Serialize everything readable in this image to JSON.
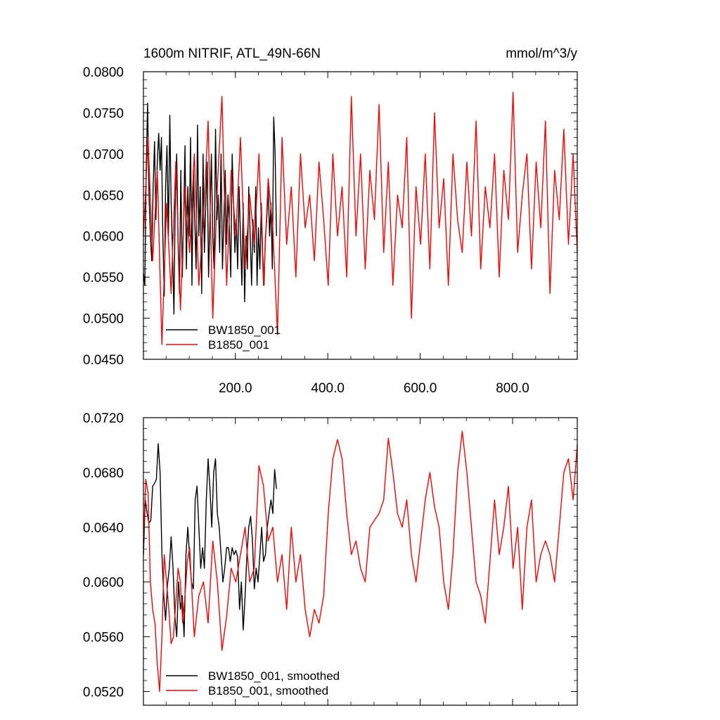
{
  "figure": {
    "title_left": "1600m NITRIF, ATL_49N-66N",
    "title_right": "mmol/m^3/y"
  },
  "chart_data": [
    {
      "type": "line",
      "title": "1600m NITRIF, ATL_49N-66N",
      "units": "mmol/m^3/y",
      "xlim": [
        1,
        940
      ],
      "ylim": [
        0.045,
        0.08
      ],
      "x_ticks": [
        200,
        400,
        600,
        800
      ],
      "x_tick_labels": [
        "200.0",
        "400.0",
        "600.0",
        "800.0"
      ],
      "y_ticks": [
        0.045,
        0.05,
        0.055,
        0.06,
        0.065,
        0.07,
        0.075,
        0.08
      ],
      "y_tick_labels": [
        "0.0450",
        "0.0500",
        "0.0550",
        "0.0600",
        "0.0650",
        "0.0700",
        "0.0750",
        "0.0800"
      ],
      "grid": false,
      "legend_position": "bottom-left",
      "series": [
        {
          "name": "BW1850_001",
          "color": "#000000",
          "x": [
            1,
            4,
            7,
            10,
            13,
            16,
            19,
            22,
            25,
            28,
            31,
            34,
            37,
            40,
            43,
            46,
            49,
            52,
            55,
            58,
            61,
            64,
            67,
            70,
            73,
            76,
            79,
            82,
            85,
            88,
            91,
            94,
            97,
            100,
            103,
            106,
            109,
            112,
            115,
            118,
            121,
            124,
            127,
            130,
            133,
            136,
            139,
            142,
            145,
            148,
            151,
            154,
            157,
            160,
            163,
            166,
            169,
            172,
            175,
            178,
            181,
            184,
            187,
            190,
            193,
            196,
            199,
            202,
            205,
            208,
            211,
            214,
            217,
            220,
            223,
            226,
            229,
            232,
            235,
            238,
            241,
            244,
            247,
            250,
            253,
            256,
            259,
            262,
            265,
            268,
            271,
            274,
            277,
            280,
            283,
            286,
            289
          ],
          "values": [
            0.0555,
            0.054,
            0.068,
            0.0762,
            0.065,
            0.06,
            0.057,
            0.066,
            0.0715,
            0.062,
            0.069,
            0.0725,
            0.068,
            0.072,
            0.06,
            0.0527,
            0.066,
            0.071,
            0.06,
            0.0747,
            0.064,
            0.058,
            0.0505,
            0.065,
            0.07,
            0.059,
            0.053,
            0.068,
            0.055,
            0.062,
            0.071,
            0.056,
            0.066,
            0.06,
            0.072,
            0.054,
            0.068,
            0.062,
            0.056,
            0.0735,
            0.06,
            0.066,
            0.053,
            0.07,
            0.058,
            0.064,
            0.069,
            0.055,
            0.062,
            0.07,
            0.06,
            0.056,
            0.073,
            0.062,
            0.065,
            0.058,
            0.07,
            0.056,
            0.062,
            0.068,
            0.059,
            0.065,
            0.061,
            0.055,
            0.07,
            0.064,
            0.058,
            0.062,
            0.056,
            0.066,
            0.06,
            0.054,
            0.064,
            0.052,
            0.06,
            0.056,
            0.066,
            0.06,
            0.054,
            0.062,
            0.058,
            0.066,
            0.054,
            0.061,
            0.056,
            0.064,
            0.058,
            0.054,
            0.06,
            0.062,
            0.066,
            0.06,
            0.064,
            0.056,
            0.0745,
            0.07,
            0.06
          ]
        },
        {
          "name": "B1850_001",
          "color": "#ff0000",
          "x": [
            1,
            11,
            21,
            31,
            41,
            51,
            61,
            71,
            81,
            91,
            101,
            111,
            121,
            131,
            141,
            151,
            161,
            171,
            181,
            191,
            201,
            211,
            221,
            231,
            241,
            251,
            261,
            271,
            281,
            291,
            301,
            311,
            321,
            331,
            341,
            351,
            361,
            371,
            381,
            391,
            401,
            411,
            421,
            431,
            441,
            451,
            461,
            471,
            481,
            491,
            501,
            511,
            521,
            531,
            541,
            551,
            561,
            571,
            581,
            591,
            601,
            611,
            621,
            631,
            641,
            651,
            661,
            671,
            681,
            691,
            701,
            711,
            721,
            731,
            741,
            751,
            761,
            771,
            781,
            791,
            801,
            811,
            821,
            831,
            841,
            851,
            861,
            871,
            881,
            891,
            901,
            911,
            921,
            931,
            940
          ],
          "values": [
            0.06,
            0.072,
            0.057,
            0.068,
            0.0468,
            0.064,
            0.053,
            0.069,
            0.051,
            0.066,
            0.058,
            0.07,
            0.054,
            0.062,
            0.074,
            0.05,
            0.066,
            0.077,
            0.054,
            0.068,
            0.06,
            0.072,
            0.056,
            0.065,
            0.059,
            0.07,
            0.054,
            0.067,
            0.061,
            0.048,
            0.072,
            0.059,
            0.066,
            0.055,
            0.07,
            0.061,
            0.065,
            0.057,
            0.069,
            0.062,
            0.054,
            0.07,
            0.06,
            0.066,
            0.055,
            0.077,
            0.06,
            0.07,
            0.056,
            0.068,
            0.062,
            0.076,
            0.058,
            0.069,
            0.054,
            0.065,
            0.061,
            0.072,
            0.05,
            0.066,
            0.059,
            0.07,
            0.056,
            0.075,
            0.061,
            0.067,
            0.054,
            0.07,
            0.062,
            0.058,
            0.069,
            0.06,
            0.074,
            0.056,
            0.066,
            0.061,
            0.07,
            0.055,
            0.068,
            0.062,
            0.0775,
            0.058,
            0.065,
            0.07,
            0.056,
            0.069,
            0.061,
            0.074,
            0.053,
            0.068,
            0.062,
            0.073,
            0.059,
            0.07,
            0.058
          ]
        }
      ]
    },
    {
      "type": "line",
      "xlim": [
        1,
        940
      ],
      "ylim": [
        0.051,
        0.072
      ],
      "x_ticks": [
        200,
        400,
        600,
        800
      ],
      "x_tick_labels": [],
      "y_ticks": [
        0.052,
        0.056,
        0.06,
        0.064,
        0.068,
        0.072
      ],
      "y_tick_labels": [
        "0.0520",
        "0.0560",
        "0.0600",
        "0.0640",
        "0.0680",
        "0.0720"
      ],
      "grid": false,
      "legend_position": "bottom-left",
      "series": [
        {
          "name": "BW1850_001, smoothed",
          "color": "#000000",
          "x": [
            1,
            5,
            9,
            13,
            17,
            21,
            25,
            29,
            33,
            37,
            41,
            45,
            49,
            53,
            57,
            61,
            65,
            69,
            73,
            77,
            81,
            85,
            89,
            93,
            97,
            101,
            105,
            109,
            113,
            117,
            121,
            125,
            129,
            133,
            137,
            141,
            145,
            149,
            153,
            157,
            161,
            165,
            169,
            173,
            177,
            181,
            185,
            189,
            193,
            197,
            201,
            205,
            209,
            213,
            217,
            221,
            225,
            229,
            233,
            237,
            241,
            245,
            249,
            253,
            257,
            261,
            265,
            269,
            273,
            277,
            281,
            285,
            289
          ],
          "values": [
            0.062,
            0.066,
            0.065,
            0.0643,
            0.0645,
            0.067,
            0.0672,
            0.0675,
            0.0701,
            0.068,
            0.062,
            0.059,
            0.0572,
            0.0598,
            0.061,
            0.0633,
            0.061,
            0.0575,
            0.056,
            0.06,
            0.058,
            0.059,
            0.056,
            0.062,
            0.064,
            0.0618,
            0.06,
            0.0595,
            0.066,
            0.067,
            0.064,
            0.061,
            0.0625,
            0.061,
            0.066,
            0.069,
            0.0668,
            0.064,
            0.068,
            0.069,
            0.065,
            0.064,
            0.062,
            0.06,
            0.061,
            0.0625,
            0.0625,
            0.0615,
            0.0625,
            0.062,
            0.0623,
            0.0618,
            0.058,
            0.06,
            0.0565,
            0.059,
            0.062,
            0.064,
            0.0648,
            0.063,
            0.0595,
            0.061,
            0.06,
            0.062,
            0.064,
            0.0615,
            0.062,
            0.064,
            0.065,
            0.066,
            0.065,
            0.0682,
            0.0668
          ]
        },
        {
          "name": "B1850_001, smoothed",
          "color": "#ff0000",
          "x": [
            1,
            6,
            11,
            16,
            21,
            26,
            31,
            36,
            41,
            46,
            51,
            56,
            61,
            66,
            71,
            76,
            81,
            86,
            91,
            96,
            101,
            111,
            121,
            131,
            141,
            151,
            161,
            171,
            181,
            191,
            201,
            211,
            221,
            231,
            241,
            251,
            261,
            271,
            281,
            291,
            301,
            311,
            321,
            331,
            341,
            351,
            361,
            371,
            381,
            391,
            401,
            411,
            421,
            431,
            441,
            451,
            461,
            471,
            481,
            491,
            501,
            511,
            521,
            531,
            541,
            551,
            561,
            571,
            581,
            591,
            601,
            611,
            621,
            631,
            641,
            651,
            661,
            671,
            681,
            691,
            701,
            711,
            721,
            731,
            741,
            751,
            761,
            771,
            781,
            791,
            801,
            811,
            821,
            831,
            841,
            851,
            861,
            871,
            881,
            891,
            901,
            911,
            921,
            931,
            940
          ],
          "values": [
            0.063,
            0.0675,
            0.0665,
            0.06,
            0.058,
            0.057,
            0.054,
            0.052,
            0.056,
            0.062,
            0.06,
            0.058,
            0.0555,
            0.056,
            0.0585,
            0.061,
            0.06,
            0.057,
            0.059,
            0.0615,
            0.0625,
            0.056,
            0.059,
            0.06,
            0.057,
            0.063,
            0.06,
            0.055,
            0.0575,
            0.061,
            0.06,
            0.062,
            0.064,
            0.06,
            0.061,
            0.0685,
            0.067,
            0.063,
            0.064,
            0.06,
            0.062,
            0.058,
            0.064,
            0.06,
            0.062,
            0.058,
            0.056,
            0.058,
            0.057,
            0.059,
            0.065,
            0.069,
            0.0704,
            0.069,
            0.065,
            0.062,
            0.063,
            0.061,
            0.06,
            0.064,
            0.0645,
            0.065,
            0.066,
            0.0705,
            0.068,
            0.065,
            0.064,
            0.066,
            0.062,
            0.06,
            0.063,
            0.066,
            0.068,
            0.0655,
            0.064,
            0.06,
            0.058,
            0.062,
            0.068,
            0.071,
            0.068,
            0.064,
            0.06,
            0.059,
            0.057,
            0.0615,
            0.066,
            0.062,
            0.064,
            0.067,
            0.061,
            0.064,
            0.058,
            0.064,
            0.066,
            0.06,
            0.062,
            0.063,
            0.062,
            0.06,
            0.064,
            0.068,
            0.069,
            0.066,
            0.07
          ]
        }
      ]
    }
  ]
}
